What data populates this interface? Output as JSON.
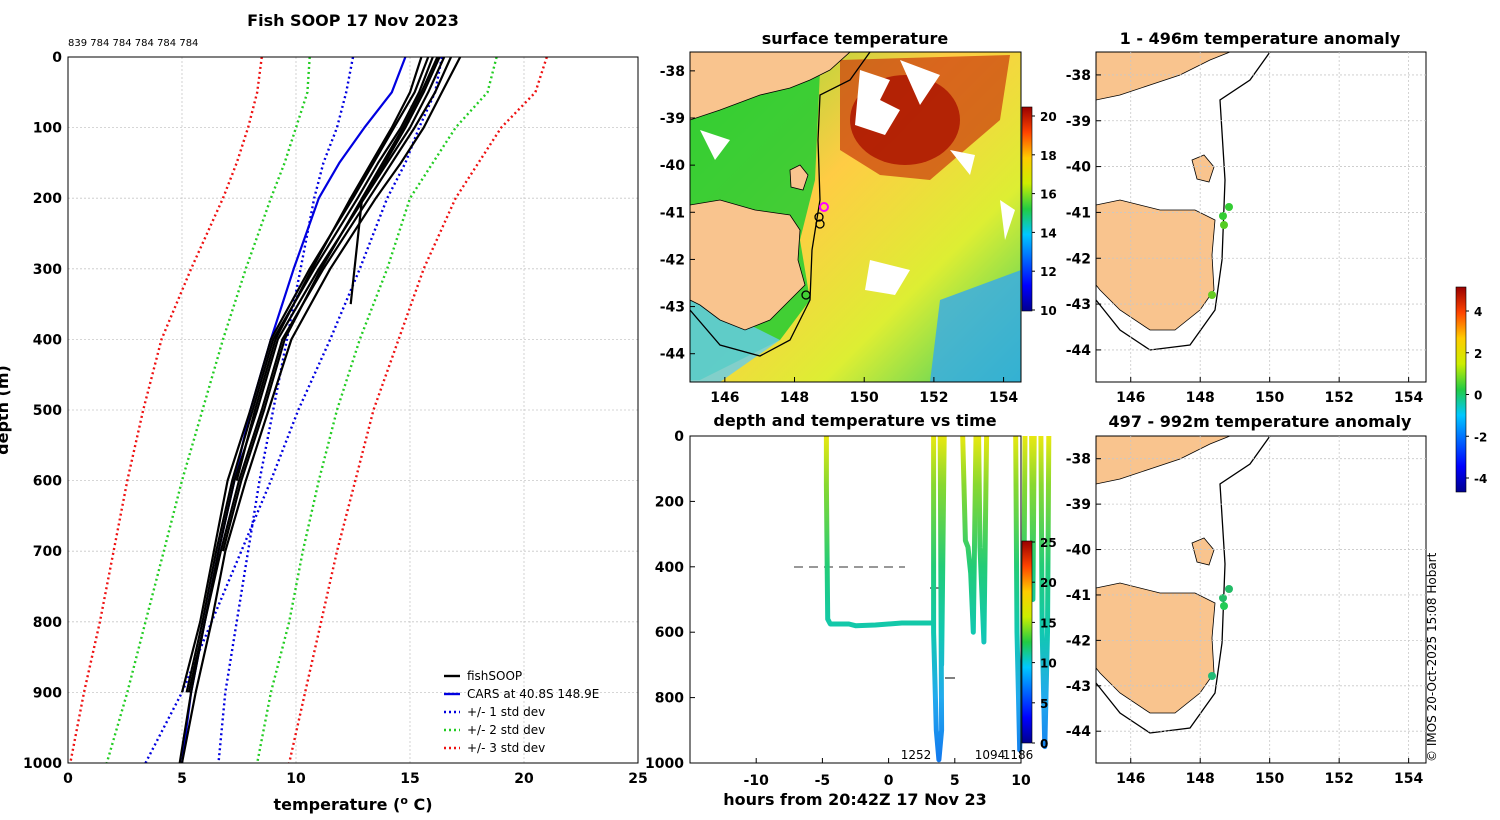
{
  "chart_data": [
    {
      "type": "line",
      "title": "Fish SOOP 17 Nov 2023",
      "count_label": "839 784 784 784 784 784",
      "xlabel": "temperature (",
      "xlabel_sup": "o",
      "xlabel_tail": " C)",
      "ylabel": "depth (m)",
      "xlim": [
        0,
        25
      ],
      "ylim": [
        1000,
        0
      ],
      "x_ticks": [
        "0",
        "5",
        "10",
        "15",
        "20",
        "25"
      ],
      "y_ticks": [
        "0",
        "100",
        "200",
        "300",
        "400",
        "500",
        "600",
        "700",
        "800",
        "900",
        "1000"
      ],
      "legend": [
        "fishSOOP",
        "CARS at 40.8S 148.9E",
        "+/- 1 std dev",
        "+/- 2 std dev",
        "+/- 3 std dev"
      ],
      "legend_colors": [
        "#000000",
        "#0000e0",
        "#0000e0",
        "#22cc22",
        "#ee1111"
      ],
      "depths": [
        0,
        50,
        100,
        150,
        200,
        300,
        400,
        500,
        600,
        700,
        800,
        900,
        1000
      ],
      "cars": [
        14.8,
        14.2,
        13.0,
        11.9,
        11.0,
        9.9,
        8.9,
        8.0,
        7.3,
        6.6,
        6.0,
        5.4,
        5.0
      ],
      "plus1": [
        12.5,
        12.2,
        11.8,
        11.2,
        10.8,
        10.2,
        9.6,
        9.0,
        8.4,
        7.9,
        7.4,
        6.9,
        6.6
      ],
      "minus1": [
        16.4,
        16.1,
        15.4,
        14.8,
        14.0,
        12.8,
        11.5,
        10.1,
        8.9,
        7.6,
        6.3,
        5.0,
        3.4
      ],
      "plus2": [
        10.6,
        10.5,
        10.0,
        9.5,
        8.9,
        7.8,
        6.8,
        5.9,
        5.0,
        4.2,
        3.4,
        2.6,
        1.7
      ],
      "minus2": [
        18.8,
        18.4,
        17.0,
        16.0,
        15.0,
        14.0,
        12.8,
        11.8,
        11.0,
        10.3,
        9.7,
        8.9,
        8.3
      ],
      "plus3": [
        8.5,
        8.3,
        7.9,
        7.4,
        6.8,
        5.4,
        4.1,
        3.3,
        2.6,
        2.0,
        1.4,
        0.7,
        0.1
      ],
      "minus3": [
        21.0,
        20.5,
        19.0,
        18.0,
        17.0,
        15.6,
        14.5,
        13.4,
        12.6,
        11.8,
        11.1,
        10.4,
        9.7
      ],
      "fish_profiles": [
        [
          17.2,
          16.4,
          15.6,
          14.6,
          13.5,
          11.5,
          9.8,
          8.8,
          7.8,
          6.9,
          6.3,
          5.6,
          5.0
        ],
        [
          16.8,
          16.1,
          15.2,
          14.2,
          13.2,
          11.2,
          9.4,
          8.5,
          7.5,
          6.7,
          6.0,
          5.4,
          4.9
        ],
        [
          16.5,
          15.8,
          15.0,
          14.0,
          13.0,
          11.0,
          9.2,
          8.3,
          7.3,
          6.6,
          6.0,
          5.3
        ],
        [
          16.0,
          15.4,
          14.6,
          13.6,
          12.7,
          10.8,
          9.0,
          8.1,
          7.2,
          6.5,
          5.9,
          5.2
        ],
        [
          15.8,
          15.2,
          14.3,
          13.4,
          12.5,
          10.6,
          8.9,
          8.0,
          7.0,
          6.4,
          5.8,
          5.0
        ],
        [
          16.3,
          15.6,
          14.8,
          13.9,
          12.9,
          11.1,
          9.5,
          8.6,
          7.6,
          6.8
        ],
        [
          15.5,
          15.0,
          14.2,
          13.3,
          12.4,
          10.7,
          9.1,
          8.2,
          7.4
        ]
      ],
      "fish_short": [
        [
          16.2,
          15.5,
          14.7,
          13.8,
          12.9,
          12.4
        ]
      ]
    },
    {
      "type": "heatmap",
      "title": "surface temperature",
      "x_ticks": [
        "146",
        "148",
        "150",
        "152",
        "154"
      ],
      "y_ticks": [
        "-38",
        "-39",
        "-40",
        "-41",
        "-42",
        "-43",
        "-44"
      ],
      "colorbar_ticks": [
        "20",
        "18",
        "16",
        "14",
        "12",
        "10"
      ]
    },
    {
      "type": "scatter",
      "title": "depth and temperature vs time",
      "xlabel": "hours from 20:42Z 17 Nov 23",
      "x_ticks": [
        "-10",
        "-5",
        "0",
        "5",
        "10"
      ],
      "y_ticks": [
        "0",
        "200",
        "400",
        "600",
        "800",
        "1000"
      ],
      "colorbar_ticks": [
        "25",
        "20",
        "15",
        "10",
        "5",
        "0"
      ],
      "profile_labels": [
        "1252",
        "1094",
        "1186"
      ]
    },
    {
      "type": "scatter",
      "title": "1 - 496m temperature anomaly",
      "x_ticks": [
        "146",
        "148",
        "150",
        "152",
        "154"
      ],
      "y_ticks": [
        "-38",
        "-39",
        "-40",
        "-41",
        "-42",
        "-43",
        "-44"
      ]
    },
    {
      "type": "scatter",
      "title": "497 - 992m temperature anomaly",
      "x_ticks": [
        "146",
        "148",
        "150",
        "152",
        "154"
      ],
      "y_ticks": [
        "-38",
        "-39",
        "-40",
        "-41",
        "-42",
        "-43",
        "-44"
      ]
    }
  ],
  "anomaly_colorbar_ticks": [
    "4",
    "2",
    "0",
    "-2",
    "-4"
  ],
  "credit": "© IMOS 20-Oct-2025 15:08 Hobart"
}
